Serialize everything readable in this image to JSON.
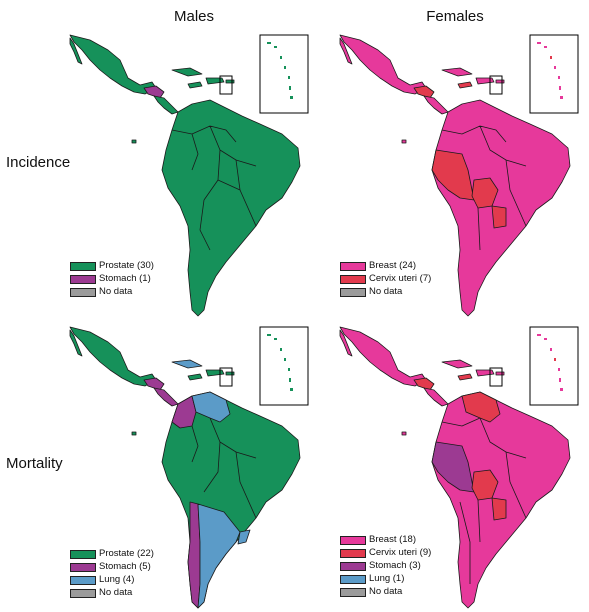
{
  "columns": {
    "males": "Males",
    "females": "Females"
  },
  "rows": {
    "incidence": "Incidence",
    "mortality": "Mortality"
  },
  "colors": {
    "prostate": "#16915a",
    "stomach": "#9c3a92",
    "lung": "#5b9bc8",
    "breast": "#e6399b",
    "cervix": "#e23a4d",
    "nodata": "#9b9b9b"
  },
  "panels": {
    "incidence_males": {
      "legend": [
        {
          "label": "Prostate (30)",
          "color": "#16915a"
        },
        {
          "label": "Stomach (1)",
          "color": "#9c3a92"
        },
        {
          "label": "No data",
          "color": "#9b9b9b"
        }
      ]
    },
    "incidence_females": {
      "legend": [
        {
          "label": "Breast (24)",
          "color": "#e6399b"
        },
        {
          "label": "Cervix uteri (7)",
          "color": "#e23a4d"
        },
        {
          "label": "No data",
          "color": "#9b9b9b"
        }
      ]
    },
    "mortality_males": {
      "legend": [
        {
          "label": "Prostate (22)",
          "color": "#16915a"
        },
        {
          "label": "Stomach (5)",
          "color": "#9c3a92"
        },
        {
          "label": "Lung (4)",
          "color": "#5b9bc8"
        },
        {
          "label": "No data",
          "color": "#9b9b9b"
        }
      ]
    },
    "mortality_females": {
      "legend": [
        {
          "label": "Breast (18)",
          "color": "#e6399b"
        },
        {
          "label": "Cervix uteri (9)",
          "color": "#e23a4d"
        },
        {
          "label": "Stomach (3)",
          "color": "#9c3a92"
        },
        {
          "label": "Lung (1)",
          "color": "#5b9bc8"
        },
        {
          "label": "No data",
          "color": "#9b9b9b"
        }
      ]
    }
  }
}
